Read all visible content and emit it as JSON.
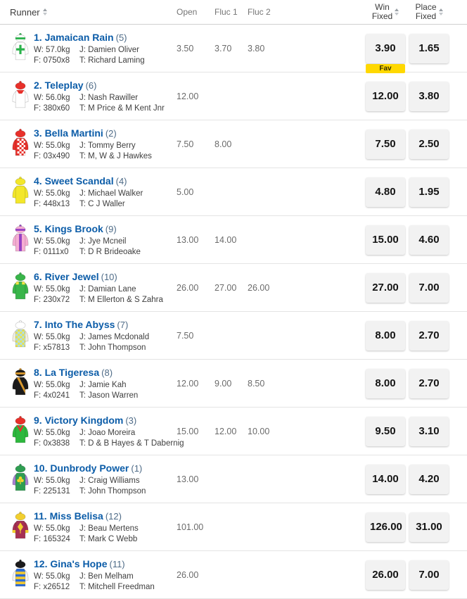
{
  "table": {
    "headers": {
      "runner": "Runner",
      "open": "Open",
      "fluc1": "Fluc 1",
      "fluc2": "Fluc 2",
      "win_line1": "Win",
      "win_line2": "Fixed",
      "place_line1": "Place",
      "place_line2": "Fixed"
    },
    "labels": {
      "weight": "W:",
      "jockey": "J:",
      "form": "F:",
      "trainer": "T:"
    },
    "fav_label": "Fav",
    "colors": {
      "accent_blue": "#0b5ca8",
      "fav_yellow": "#ffd800",
      "button_gray": "#f2f2f2"
    },
    "runners": [
      {
        "name_display": "1. Jamaican Rain",
        "barrier_display": "(5)",
        "weight": "57.0kg",
        "jockey": "Damien Oliver",
        "form": "0750x8",
        "trainer": "Richard Laming",
        "open": "3.50",
        "fluc1": "3.70",
        "fluc2": "3.80",
        "win": "3.90",
        "place": "1.65",
        "fav": true,
        "silk": {
          "name": "white-green-cross",
          "cap": "#ffffff",
          "capBand": "#2ab24b",
          "pom": "#2ab24b",
          "body": "#ffffff",
          "sleeves": "#ffffff",
          "pattern": "cross",
          "patternColor": "#2ab24b"
        }
      },
      {
        "name_display": "2. Teleplay",
        "barrier_display": "(6)",
        "weight": "56.0kg",
        "jockey": "Nash Rawiller",
        "form": "380x60",
        "trainer": "M Price & M Kent Jnr",
        "open": "12.00",
        "fluc1": "",
        "fluc2": "",
        "win": "12.00",
        "place": "3.80",
        "fav": false,
        "silk": {
          "name": "white-red-collar",
          "cap": "#e8302a",
          "pom": "#e8302a",
          "body": "#ffffff",
          "sleeves": "#ffffff",
          "pattern": "collar",
          "patternColor": "#e8302a"
        }
      },
      {
        "name_display": "3. Bella Martini",
        "barrier_display": "(2)",
        "weight": "55.0kg",
        "jockey": "Tommy Berry",
        "form": "03x490",
        "trainer": "M, W & J Hawkes",
        "open": "7.50",
        "fluc1": "8.00",
        "fluc2": "",
        "win": "7.50",
        "place": "2.50",
        "fav": false,
        "silk": {
          "name": "red-white-checks",
          "cap": "#e8302a",
          "pom": "#e8302a",
          "body": "#e8302a",
          "sleeves": "#e8302a",
          "pattern": "checks-panel",
          "patternColor": "#ffffff"
        }
      },
      {
        "name_display": "4. Sweet Scandal",
        "barrier_display": "(4)",
        "weight": "55.0kg",
        "jockey": "Michael Walker",
        "form": "448x13",
        "trainer": "C J Waller",
        "open": "5.00",
        "fluc1": "",
        "fluc2": "",
        "win": "4.80",
        "place": "1.95",
        "fav": false,
        "silk": {
          "name": "all-yellow",
          "cap": "#f3e72a",
          "pom": "#f3e72a",
          "body": "#f3e72a",
          "sleeves": "#f3e72a",
          "pattern": "none",
          "patternColor": "#f3e72a"
        }
      },
      {
        "name_display": "5. Kings Brook",
        "barrier_display": "(9)",
        "weight": "55.0kg",
        "jockey": "Jye Mcneil",
        "form": "0111x0",
        "trainer": "D R Brideoake",
        "open": "13.00",
        "fluc1": "14.00",
        "fluc2": "",
        "win": "15.00",
        "place": "4.60",
        "fav": false,
        "silk": {
          "name": "pink-purple-stripe",
          "cap": "#f6aed3",
          "capBand": "#9440c4",
          "pom": "#9440c4",
          "body": "#f6aed3",
          "sleeves": "#f6aed3",
          "pattern": "stripe",
          "patternColor": "#9440c4"
        }
      },
      {
        "name_display": "6. River Jewel",
        "barrier_display": "(10)",
        "weight": "55.0kg",
        "jockey": "Damian Lane",
        "form": "230x72",
        "trainer": "M Ellerton & S Zahra",
        "open": "26.00",
        "fluc1": "27.00",
        "fluc2": "26.00",
        "win": "27.00",
        "place": "7.00",
        "fav": false,
        "silk": {
          "name": "green-yellow-epaulettes",
          "cap": "#39b54a",
          "pom": "#39b54a",
          "body": "#39b54a",
          "sleeves": "#39b54a",
          "pattern": "epaulettes",
          "patternColor": "#f9e547"
        }
      },
      {
        "name_display": "7. Into The Abyss",
        "barrier_display": "(7)",
        "weight": "55.0kg",
        "jockey": "James Mcdonald",
        "form": "x57813",
        "trainer": "John Thompson",
        "open": "7.50",
        "fluc1": "",
        "fluc2": "",
        "win": "8.00",
        "place": "2.70",
        "fav": false,
        "silk": {
          "name": "yellow-blue-checks",
          "cap": "#ffffff",
          "pom": "#ffffff",
          "body": "#ece34b",
          "sleeves": "#f3f0dd",
          "pattern": "checks-full",
          "patternColor": "#aadcef"
        }
      },
      {
        "name_display": "8. La Tigeresa",
        "barrier_display": "(8)",
        "weight": "55.0kg",
        "jockey": "Jamie Kah",
        "form": "4x0241",
        "trainer": "Jason Warren",
        "open": "12.00",
        "fluc1": "9.00",
        "fluc2": "8.50",
        "win": "8.00",
        "place": "2.70",
        "fav": false,
        "silk": {
          "name": "black-gold-sash",
          "cap": "#1b1b1b",
          "capBand": "#d9992e",
          "pom": "#d9992e",
          "body": "#1b1b1b",
          "sleeves": "#1b1b1b",
          "pattern": "sash",
          "patternColor": "#d9992e"
        }
      },
      {
        "name_display": "9. Victory Kingdom",
        "barrier_display": "(3)",
        "weight": "55.0kg",
        "jockey": "Joao Moreira",
        "form": "0x3838",
        "trainer": "D & B Hayes & T Dabernig",
        "open": "15.00",
        "fluc1": "12.00",
        "fluc2": "10.00",
        "win": "9.50",
        "place": "3.10",
        "fav": false,
        "silk": {
          "name": "green-red-vee",
          "cap": "#e8302a",
          "pom": "#e8302a",
          "body": "#2db83d",
          "sleeves": "#2db83d",
          "pattern": "vee",
          "patternColor": "#e8302a"
        }
      },
      {
        "name_display": "10. Dunbrody Power",
        "barrier_display": "(1)",
        "weight": "55.0kg",
        "jockey": "Craig Williams",
        "form": "225131",
        "trainer": "John Thompson",
        "open": "13.00",
        "fluc1": "",
        "fluc2": "",
        "win": "14.00",
        "place": "4.20",
        "fav": false,
        "silk": {
          "name": "green-shamrock-purple-sleeves",
          "cap": "#2f9e52",
          "pom": "#2f9e52",
          "body": "#2f9e52",
          "sleeves": "#a77fd1",
          "pattern": "clover",
          "patternColor": "#f6d62b"
        }
      },
      {
        "name_display": "11. Miss Belisa",
        "barrier_display": "(12)",
        "weight": "55.0kg",
        "jockey": "Beau Mertens",
        "form": "165324",
        "trainer": "Mark C Webb",
        "open": "101.00",
        "fluc1": "",
        "fluc2": "",
        "win": "126.00",
        "place": "31.00",
        "fav": false,
        "silk": {
          "name": "maroon-yellow-leaf",
          "cap": "#f2cf2f",
          "pom": "#f2cf2f",
          "body": "#a63053",
          "sleeves": "#a63053",
          "cuffs": "#f2cf2f",
          "pattern": "leaf",
          "patternColor": "#f2cf2f"
        }
      },
      {
        "name_display": "12. Gina's Hope",
        "barrier_display": "(11)",
        "weight": "55.0kg",
        "jockey": "Ben Melham",
        "form": "x26512",
        "trainer": "Mitchell Freedman",
        "open": "26.00",
        "fluc1": "",
        "fluc2": "",
        "win": "26.00",
        "place": "7.00",
        "fav": false,
        "silk": {
          "name": "blue-yellow-hoops",
          "cap": "#1b1b1b",
          "pom": "#1b1b1b",
          "body": "#2b6bd6",
          "sleeves": "#f4f4f4",
          "pattern": "hoops",
          "patternColor": "#f0c832"
        }
      }
    ]
  }
}
